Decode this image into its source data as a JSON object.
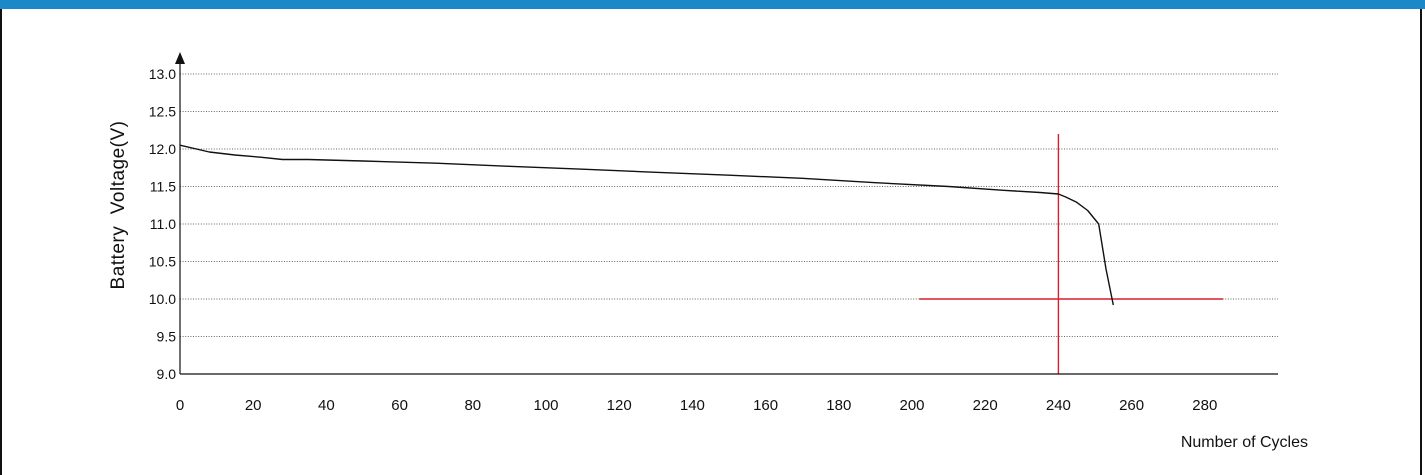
{
  "header": {
    "bar_color": "#1a88c9"
  },
  "chart_data": {
    "type": "line",
    "title": "",
    "xlabel": "Number of Cycles",
    "ylabel": "Battery  Voltage(V)",
    "xlim": [
      0,
      300
    ],
    "ylim": [
      9.0,
      13.0
    ],
    "x_ticks": [
      0,
      20,
      40,
      60,
      80,
      100,
      120,
      140,
      160,
      180,
      200,
      220,
      240,
      260,
      280
    ],
    "x_tick_labels": [
      "0",
      "20",
      "40",
      "60",
      "80",
      "100",
      "120",
      "140",
      "160",
      "180",
      "200",
      "220",
      "240",
      "260",
      "280"
    ],
    "y_ticks": [
      9.0,
      9.5,
      10.0,
      10.5,
      11.0,
      11.5,
      12.0,
      12.5,
      13.0
    ],
    "y_tick_labels": [
      "9.0",
      "9.5",
      "10.0",
      "10.5",
      "11.0",
      "11.5",
      "12.0",
      "12.5",
      "13.0"
    ],
    "grid": "horizontal dotted",
    "series": [
      {
        "color": "#111111",
        "x": [
          0,
          8,
          15,
          22,
          28,
          35,
          50,
          70,
          90,
          110,
          130,
          150,
          170,
          190,
          210,
          225,
          235,
          240,
          242,
          245,
          248,
          251,
          253,
          255
        ],
        "y": [
          12.05,
          11.96,
          11.92,
          11.89,
          11.86,
          11.86,
          11.84,
          11.81,
          11.77,
          11.73,
          11.69,
          11.65,
          11.61,
          11.55,
          11.5,
          11.45,
          11.42,
          11.4,
          11.36,
          11.29,
          11.18,
          11.0,
          10.4,
          9.92
        ]
      }
    ],
    "reference_lines": [
      {
        "type": "vertical",
        "x": 240,
        "y_range": [
          9.0,
          12.2
        ],
        "color": "#d81e2a"
      },
      {
        "type": "horizontal",
        "y": 10.0,
        "x_range": [
          202,
          285
        ],
        "color": "#d81e2a"
      }
    ]
  }
}
